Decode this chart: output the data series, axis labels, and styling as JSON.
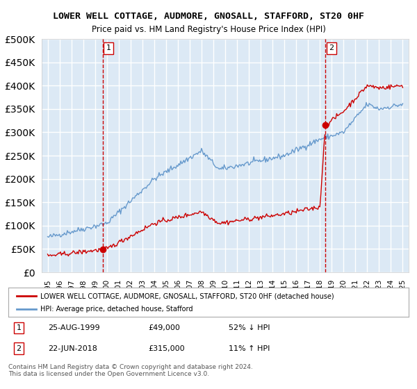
{
  "title": "LOWER WELL COTTAGE, AUDMORE, GNOSALL, STAFFORD, ST20 0HF",
  "subtitle": "Price paid vs. HM Land Registry's House Price Index (HPI)",
  "legend_line1": "LOWER WELL COTTAGE, AUDMORE, GNOSALL, STAFFORD, ST20 0HF (detached house)",
  "legend_line2": "HPI: Average price, detached house, Stafford",
  "footnote": "Contains HM Land Registry data © Crown copyright and database right 2024.\nThis data is licensed under the Open Government Licence v3.0.",
  "sale1_date": "25-AUG-1999",
  "sale1_price": 49000,
  "sale1_hpi": "52% ↓ HPI",
  "sale2_date": "22-JUN-2018",
  "sale2_price": 315000,
  "sale2_hpi": "11% ↑ HPI",
  "sale1_x": 1999.65,
  "sale2_x": 2018.47,
  "hpi_color": "#6699cc",
  "price_color": "#cc0000",
  "bg_color": "#dce9f5",
  "plot_bg": "#dce9f5",
  "grid_color": "#ffffff",
  "vline_color": "#cc0000",
  "marker_color": "#cc0000",
  "ylim": [
    0,
    500000
  ],
  "xlim_start": 1994.5,
  "xlim_end": 2025.5,
  "ytick_step": 50000
}
